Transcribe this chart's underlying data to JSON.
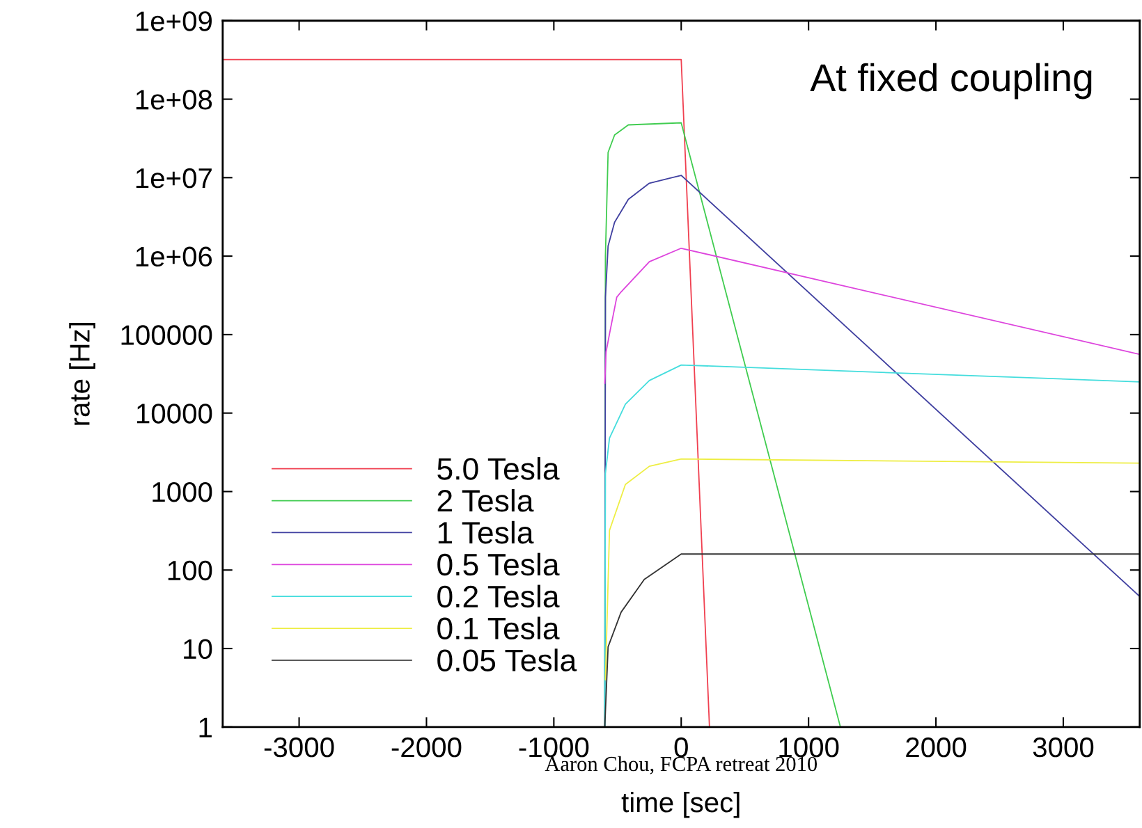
{
  "chart_data": {
    "type": "line",
    "xlabel": "time [sec]",
    "ylabel": "rate [Hz]",
    "log": "y",
    "grid": false,
    "legend": "bottom left",
    "line_style": "solid",
    "marker": "none",
    "annotations": [
      "At fixed coupling",
      "Aaron Chou, FCPA retreat 2010"
    ],
    "xlim": [
      -3600,
      3600
    ],
    "xticks": [
      -3000,
      -2000,
      -1000,
      0,
      1000,
      2000,
      3000
    ],
    "ylim": [
      1,
      1000000000
    ],
    "yticks": [
      {
        "value": 1,
        "label": "1"
      },
      {
        "value": 10,
        "label": "10"
      },
      {
        "value": 100,
        "label": "100"
      },
      {
        "value": 1000,
        "label": "1000"
      },
      {
        "value": 10000,
        "label": "10000"
      },
      {
        "value": 100000,
        "label": "100000"
      },
      {
        "value": 1000000,
        "label": "1e+06"
      },
      {
        "value": 10000000,
        "label": "1e+07"
      },
      {
        "value": 100000000,
        "label": "1e+08"
      },
      {
        "value": 1000000000,
        "label": "1e+09"
      }
    ],
    "series": [
      {
        "name": "5.0 Tesla",
        "color": "#f04050",
        "x": [
          -3600,
          0,
          222
        ],
        "values": [
          320000000,
          320000000,
          1
        ]
      },
      {
        "name": "2 Tesla",
        "color": "#40cc50",
        "x": [
          -600,
          -595,
          -574,
          -523,
          -415,
          0,
          1250
        ],
        "values": [
          1,
          1000000,
          21000000,
          35000000,
          47000000,
          50000000,
          1
        ]
      },
      {
        "name": "1 Tesla",
        "color": "#4040a0",
        "x": [
          -600,
          -595,
          -574,
          -523,
          -415,
          -250,
          0,
          3600
        ],
        "values": [
          1,
          300000,
          1350000,
          2700000,
          5300000,
          8500000,
          10700000,
          46
        ]
      },
      {
        "name": "0.5 Tesla",
        "color": "#dd44dd",
        "x": [
          -600,
          -590,
          -563,
          -506,
          -472,
          -250,
          0,
          3600
        ],
        "values": [
          24000,
          60000,
          102000,
          300000,
          350000,
          850000,
          1260000,
          56000
        ]
      },
      {
        "name": "0.2 Tesla",
        "color": "#44dddd",
        "x": [
          -600,
          -595,
          -563,
          -438,
          -250,
          0,
          3600
        ],
        "values": [
          1,
          1700,
          4800,
          13000,
          26000,
          41000,
          25000
        ]
      },
      {
        "name": "0.1 Tesla",
        "color": "#eeee44",
        "x": [
          -595,
          -563,
          -438,
          -250,
          0,
          3600
        ],
        "values": [
          4,
          320,
          1230,
          2100,
          2600,
          2300
        ]
      },
      {
        "name": "0.05 Tesla",
        "color": "#333333",
        "x": [
          -600,
          -574,
          -472,
          -290,
          0,
          3600
        ],
        "values": [
          1,
          10.5,
          29,
          76,
          160,
          160
        ]
      }
    ]
  }
}
